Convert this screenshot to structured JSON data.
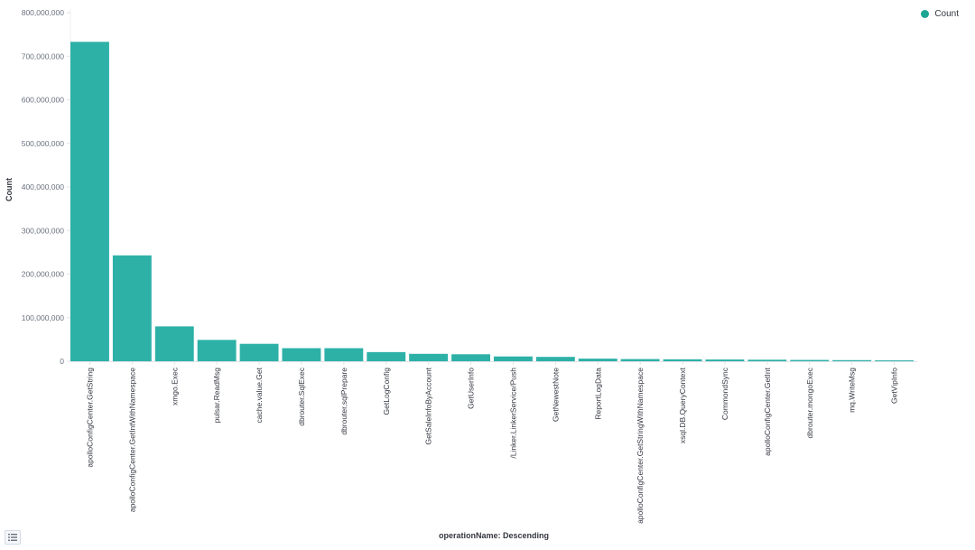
{
  "chart_data": {
    "type": "bar",
    "ylabel": "Count",
    "xlabel": "operationName: Descending",
    "ylim": [
      0,
      800000000
    ],
    "yticks": [
      0,
      100000000,
      200000000,
      300000000,
      400000000,
      500000000,
      600000000,
      700000000,
      800000000
    ],
    "grid": false,
    "legend_position": "top-right",
    "categories": [
      "apolloConfigCenter.GetString",
      "apolloConfigCenter.GetIntWithNamespace",
      "xmgo.Exec",
      "pulsar.ReadMsg",
      "cache.value.Get",
      "dbrouter.SqlExec",
      "dbrouter.sqlPrepare",
      "GetLogConfig",
      "GetSaleInfoByAccount",
      "GetUserInfo",
      "/Linker.LinkerService/Push",
      "GetNewestNote",
      "ReportLogData",
      "apolloConfigCenter.GetStringWithNamespace",
      "xsql.DB.QueryContext",
      "CommondSync",
      "apolloConfigCenter.GetInt",
      "dbrouter.mongoExec",
      "mq.WriteMsg",
      "GetVipInfo"
    ],
    "series": [
      {
        "name": "Count",
        "color": "#2db1a7",
        "values": [
          733000000,
          243000000,
          80000000,
          49000000,
          40000000,
          30000000,
          30000000,
          21000000,
          17000000,
          16000000,
          11000000,
          10000000,
          6000000,
          5000000,
          4500000,
          4000000,
          3500000,
          3000000,
          2500000,
          2000000
        ]
      }
    ]
  },
  "legend": {
    "label": "Count",
    "color": "#1ea593"
  },
  "legend_toggle": {
    "icon": "list-icon"
  }
}
